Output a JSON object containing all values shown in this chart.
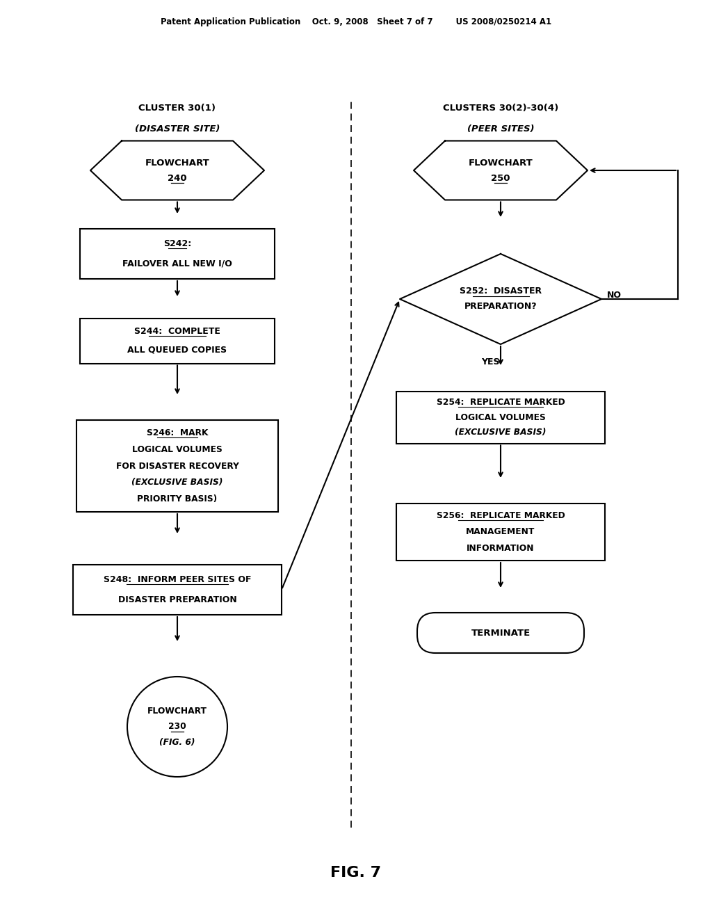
{
  "bg_color": "#ffffff",
  "header_text": "Patent Application Publication    Oct. 9, 2008   Sheet 7 of 7        US 2008/0250214 A1",
  "fig_label": "FIG. 7",
  "dashed_line_x": 0.5,
  "left_title1": "CLUSTER 30(1)",
  "left_title2": "(DISASTER SITE)",
  "right_title1": "CLUSTERS 30(2)-30(4)",
  "right_title2": "(PEER SITES)",
  "fc240_text": "FLOWCHART\n240",
  "fc250_text": "FLOWCHART\n250",
  "s242_text": "S242:\nFAILOVER ALL NEW I/O",
  "s244_text": "S244:  COMPLETE\nALL QUEUED COPIES",
  "s246_text": "S246:  MARK\nLOGICAL VOLUMES\nFOR DISASTER RECOVERY\n(EXCLUSIVE BASIS)\nPRIORITY BASIS)",
  "s248_text": "S248:  INFORM PEER SITES OF\nDISASTER PREPARATION",
  "s252_text": "S252:  DISASTER\nPREPARATION?",
  "s254_text": "S254:  REPLICATE MARKED\nLOGICAL VOLUMES\n(EXCLUSIVE BASIS)",
  "s256_text": "S256:  REPLICATE MARKED\nMANAGEMENT\nINFORMATION",
  "terminate_text": "TERMINATE",
  "fc230_text": "FLOWCHART\n230\n(FIG. 6)",
  "yes_label": "YES",
  "no_label": "NO"
}
